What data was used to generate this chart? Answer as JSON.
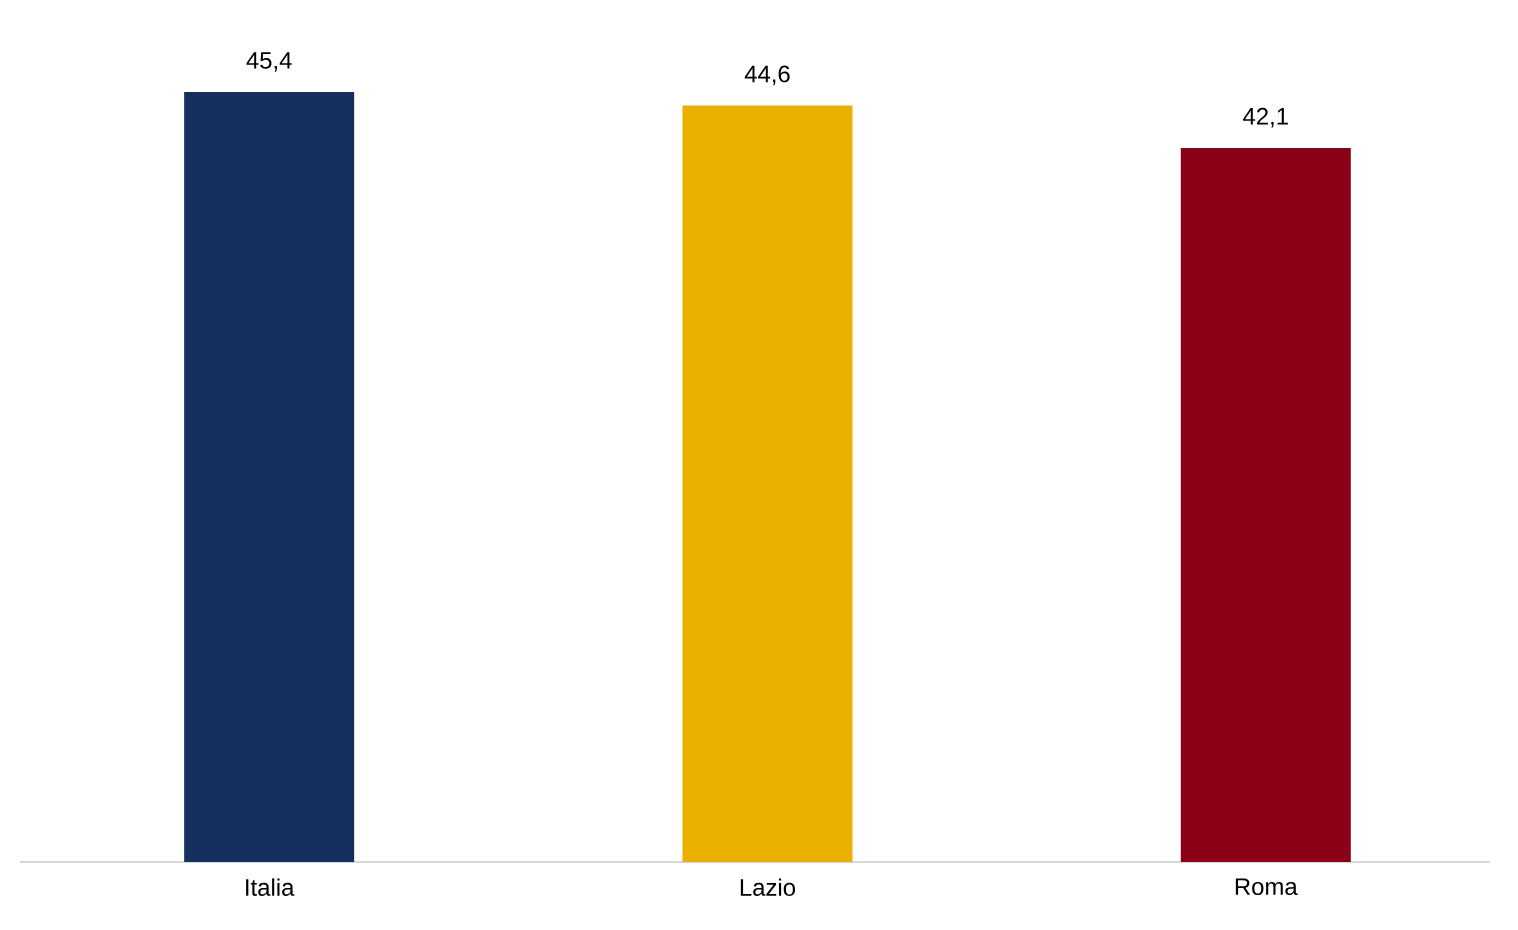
{
  "chart_data": {
    "type": "bar",
    "categories": [
      "Italia",
      "Lazio",
      "Roma"
    ],
    "values": [
      45.4,
      44.6,
      42.1
    ],
    "colors": [
      "#14305e",
      "#eab000",
      "#8a0016"
    ],
    "value_labels": [
      "45,4",
      "44,6",
      "42,1"
    ]
  }
}
